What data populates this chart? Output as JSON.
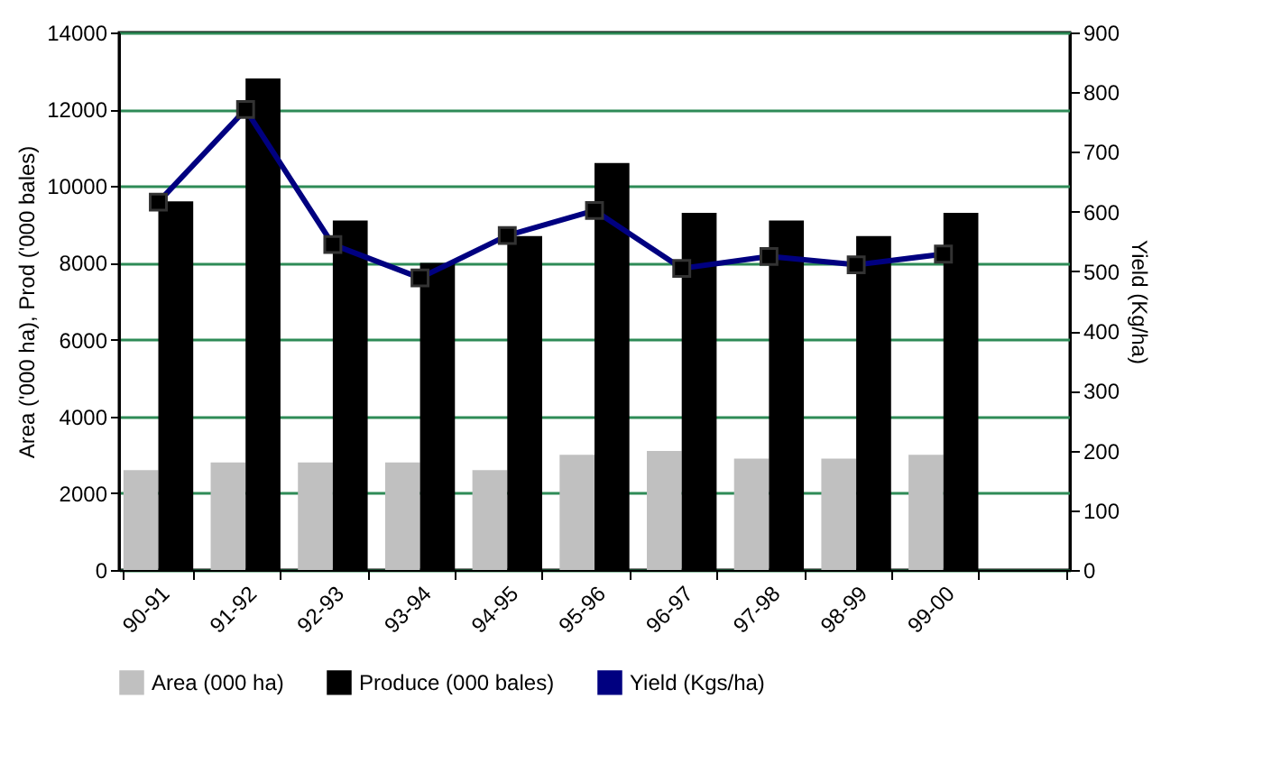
{
  "chart_data": {
    "type": "bar",
    "ylabel": "Area ('000 ha), Prod ('000 bales)",
    "y2label": "Yield (Kg/ha)",
    "categories": [
      "90-91",
      "91-92",
      "92-93",
      "93-94",
      "94-95",
      "95-96",
      "96-97",
      "97-98",
      "98-99",
      "99-00",
      null
    ],
    "series": [
      {
        "name": "Area (000 ha)",
        "color": "#c0c0c0",
        "values": [
          2600,
          2800,
          2800,
          2800,
          2600,
          3000,
          3100,
          2900,
          2900,
          3000,
          null
        ]
      },
      {
        "name": "Produce (000 bales)",
        "color": "#000000",
        "values": [
          9600,
          12800,
          9100,
          8000,
          8700,
          10600,
          9300,
          9100,
          8700,
          9300,
          null
        ]
      },
      {
        "name": "Yield (Kgs/ha)",
        "type": "line",
        "axis": "y2",
        "color": "#000080",
        "marker": "square",
        "values": [
          616,
          771,
          545,
          489,
          560,
          602,
          505,
          525,
          511,
          529,
          null
        ]
      }
    ],
    "ylim": [
      0,
      14000
    ],
    "yticks": [
      0,
      2000,
      4000,
      6000,
      8000,
      10000,
      12000,
      14000
    ],
    "y2lim": [
      0,
      900
    ],
    "y2ticks": [
      0,
      100,
      200,
      300,
      400,
      500,
      600,
      700,
      800,
      900
    ],
    "grid": "y",
    "legend": "bottom"
  }
}
